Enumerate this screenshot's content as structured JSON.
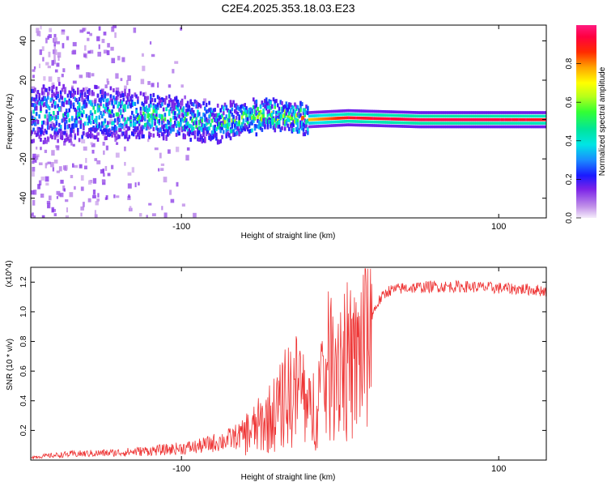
{
  "figure": {
    "title": "C2E4.2025.353.18.03.E23"
  },
  "chart_data": [
    {
      "type": "heatmap",
      "title": "C2E4.2025.353.18.03.E23",
      "xlabel": "Height of straight line (km)",
      "ylabel": "Frequency (Hz)",
      "xlim": [
        -195,
        130
      ],
      "ylim": [
        -50,
        48
      ],
      "xticks": [
        -100,
        100
      ],
      "yticks": [
        -40,
        -20,
        0,
        20,
        40
      ],
      "colorbar": {
        "label": "Normalized spectral amplitude",
        "range": [
          0.0,
          1.0
        ],
        "ticks": [
          "0.0",
          "0.2",
          "0.4",
          "0.6",
          "0.8"
        ]
      },
      "ridge": {
        "description_points": [
          {
            "x": -185,
            "f": 3,
            "amp": 0.35
          },
          {
            "x": -150,
            "f": 3,
            "amp": 0.45
          },
          {
            "x": -110,
            "f": 1,
            "amp": 0.45
          },
          {
            "x": -80,
            "f": -2,
            "amp": 0.5
          },
          {
            "x": -45,
            "f": 2,
            "amp": 0.6
          },
          {
            "x": -20,
            "f": 0,
            "amp": 0.75
          },
          {
            "x": 5,
            "f": 1,
            "amp": 0.9
          },
          {
            "x": 50,
            "f": 0,
            "amp": 0.95
          },
          {
            "x": 90,
            "f": 0,
            "amp": 0.95
          },
          {
            "x": 130,
            "f": 0,
            "amp": 0.9
          }
        ]
      }
    },
    {
      "type": "line",
      "xlabel": "Height of straight line (km)",
      "ylabel": "SNR (10 * v/v)",
      "y_multiplier": "(x10^4)",
      "xlim": [
        -195,
        130
      ],
      "ylim": [
        0.0,
        1.3
      ],
      "xticks": [
        -100,
        100
      ],
      "yticks": [
        0.2,
        0.4,
        0.6,
        0.8,
        1.0,
        1.2
      ],
      "series": [
        {
          "name": "SNR",
          "color": "#ee3333",
          "envelope_x": [
            -195,
            -170,
            -140,
            -110,
            -90,
            -70,
            -55,
            -45,
            -38,
            -30,
            -25,
            -20,
            -15,
            -10,
            -5,
            0,
            5,
            10,
            15,
            20,
            25,
            30,
            40,
            60,
            80,
            100,
            120,
            130
          ],
          "envelope_y": [
            0.02,
            0.04,
            0.05,
            0.07,
            0.09,
            0.14,
            0.2,
            0.28,
            0.35,
            0.45,
            0.5,
            0.3,
            0.4,
            0.55,
            0.68,
            0.72,
            0.65,
            0.62,
            0.85,
            0.98,
            1.08,
            1.14,
            1.16,
            1.17,
            1.17,
            1.16,
            1.15,
            1.14
          ]
        }
      ]
    }
  ]
}
